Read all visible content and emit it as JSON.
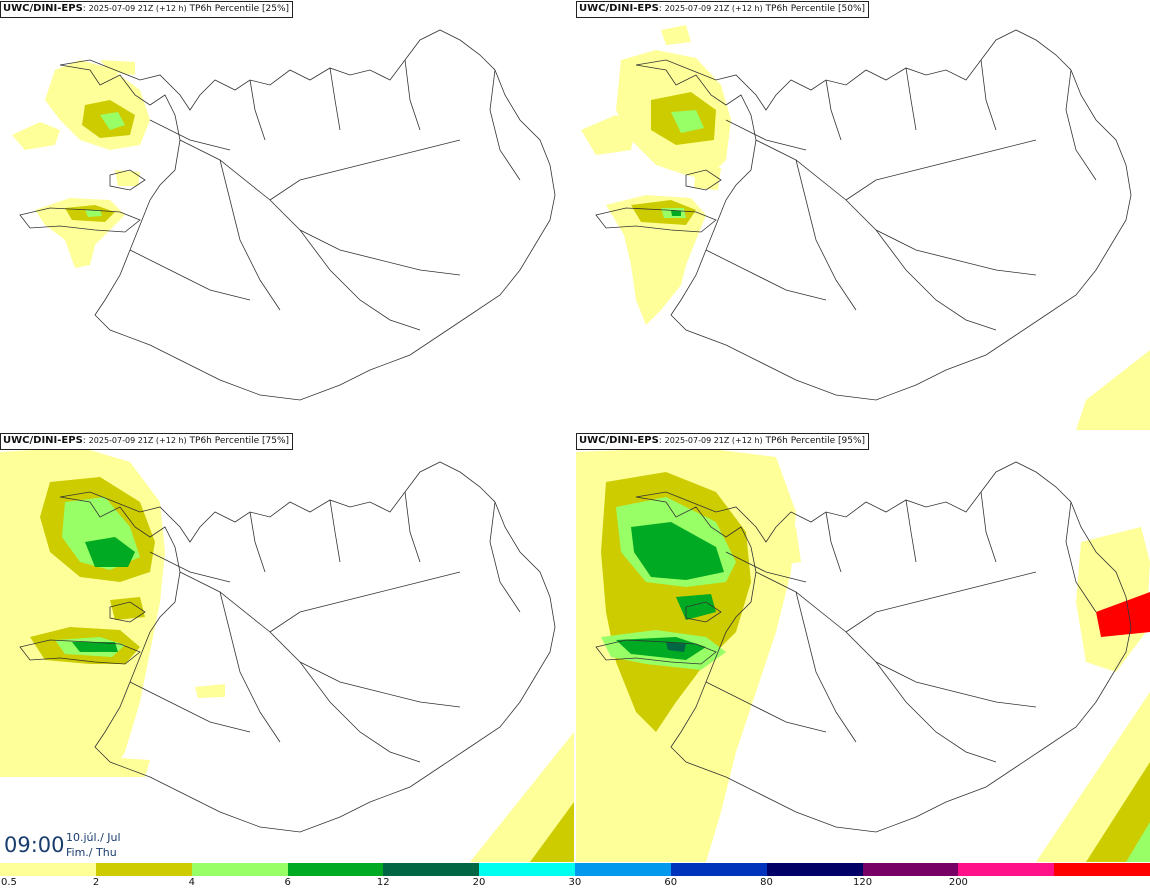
{
  "panels": [
    {
      "model": "UWC/DINI-EPS",
      "run": "2025-07-09 21Z (+12 h)",
      "variable": "TP6h Percentile",
      "percentile": "[25%]"
    },
    {
      "model": "UWC/DINI-EPS",
      "run": "2025-07-09 21Z (+12 h)",
      "variable": "TP6h Percentile",
      "percentile": "[50%]"
    },
    {
      "model": "UWC/DINI-EPS",
      "run": "2025-07-09 21Z (+12 h)",
      "variable": "TP6h Percentile",
      "percentile": "[75%]"
    },
    {
      "model": "UWC/DINI-EPS",
      "run": "2025-07-09 21Z (+12 h)",
      "variable": "TP6h Percentile",
      "percentile": "[95%]"
    }
  ],
  "valid_time": {
    "time": "09:00",
    "date": "10.júl./ Jul",
    "day": "Fim./ Thu"
  },
  "legend": {
    "colors": [
      "#ffff99",
      "#cccc00",
      "#99ff66",
      "#00aa22",
      "#006644",
      "#00ffee",
      "#0099ee",
      "#0033bb",
      "#000066",
      "#770066",
      "#ff1188",
      "#ff0000"
    ],
    "ticks": [
      "0.5",
      "2",
      "4",
      "6",
      "12",
      "20",
      "30",
      "60",
      "80",
      "120",
      "200"
    ]
  }
}
